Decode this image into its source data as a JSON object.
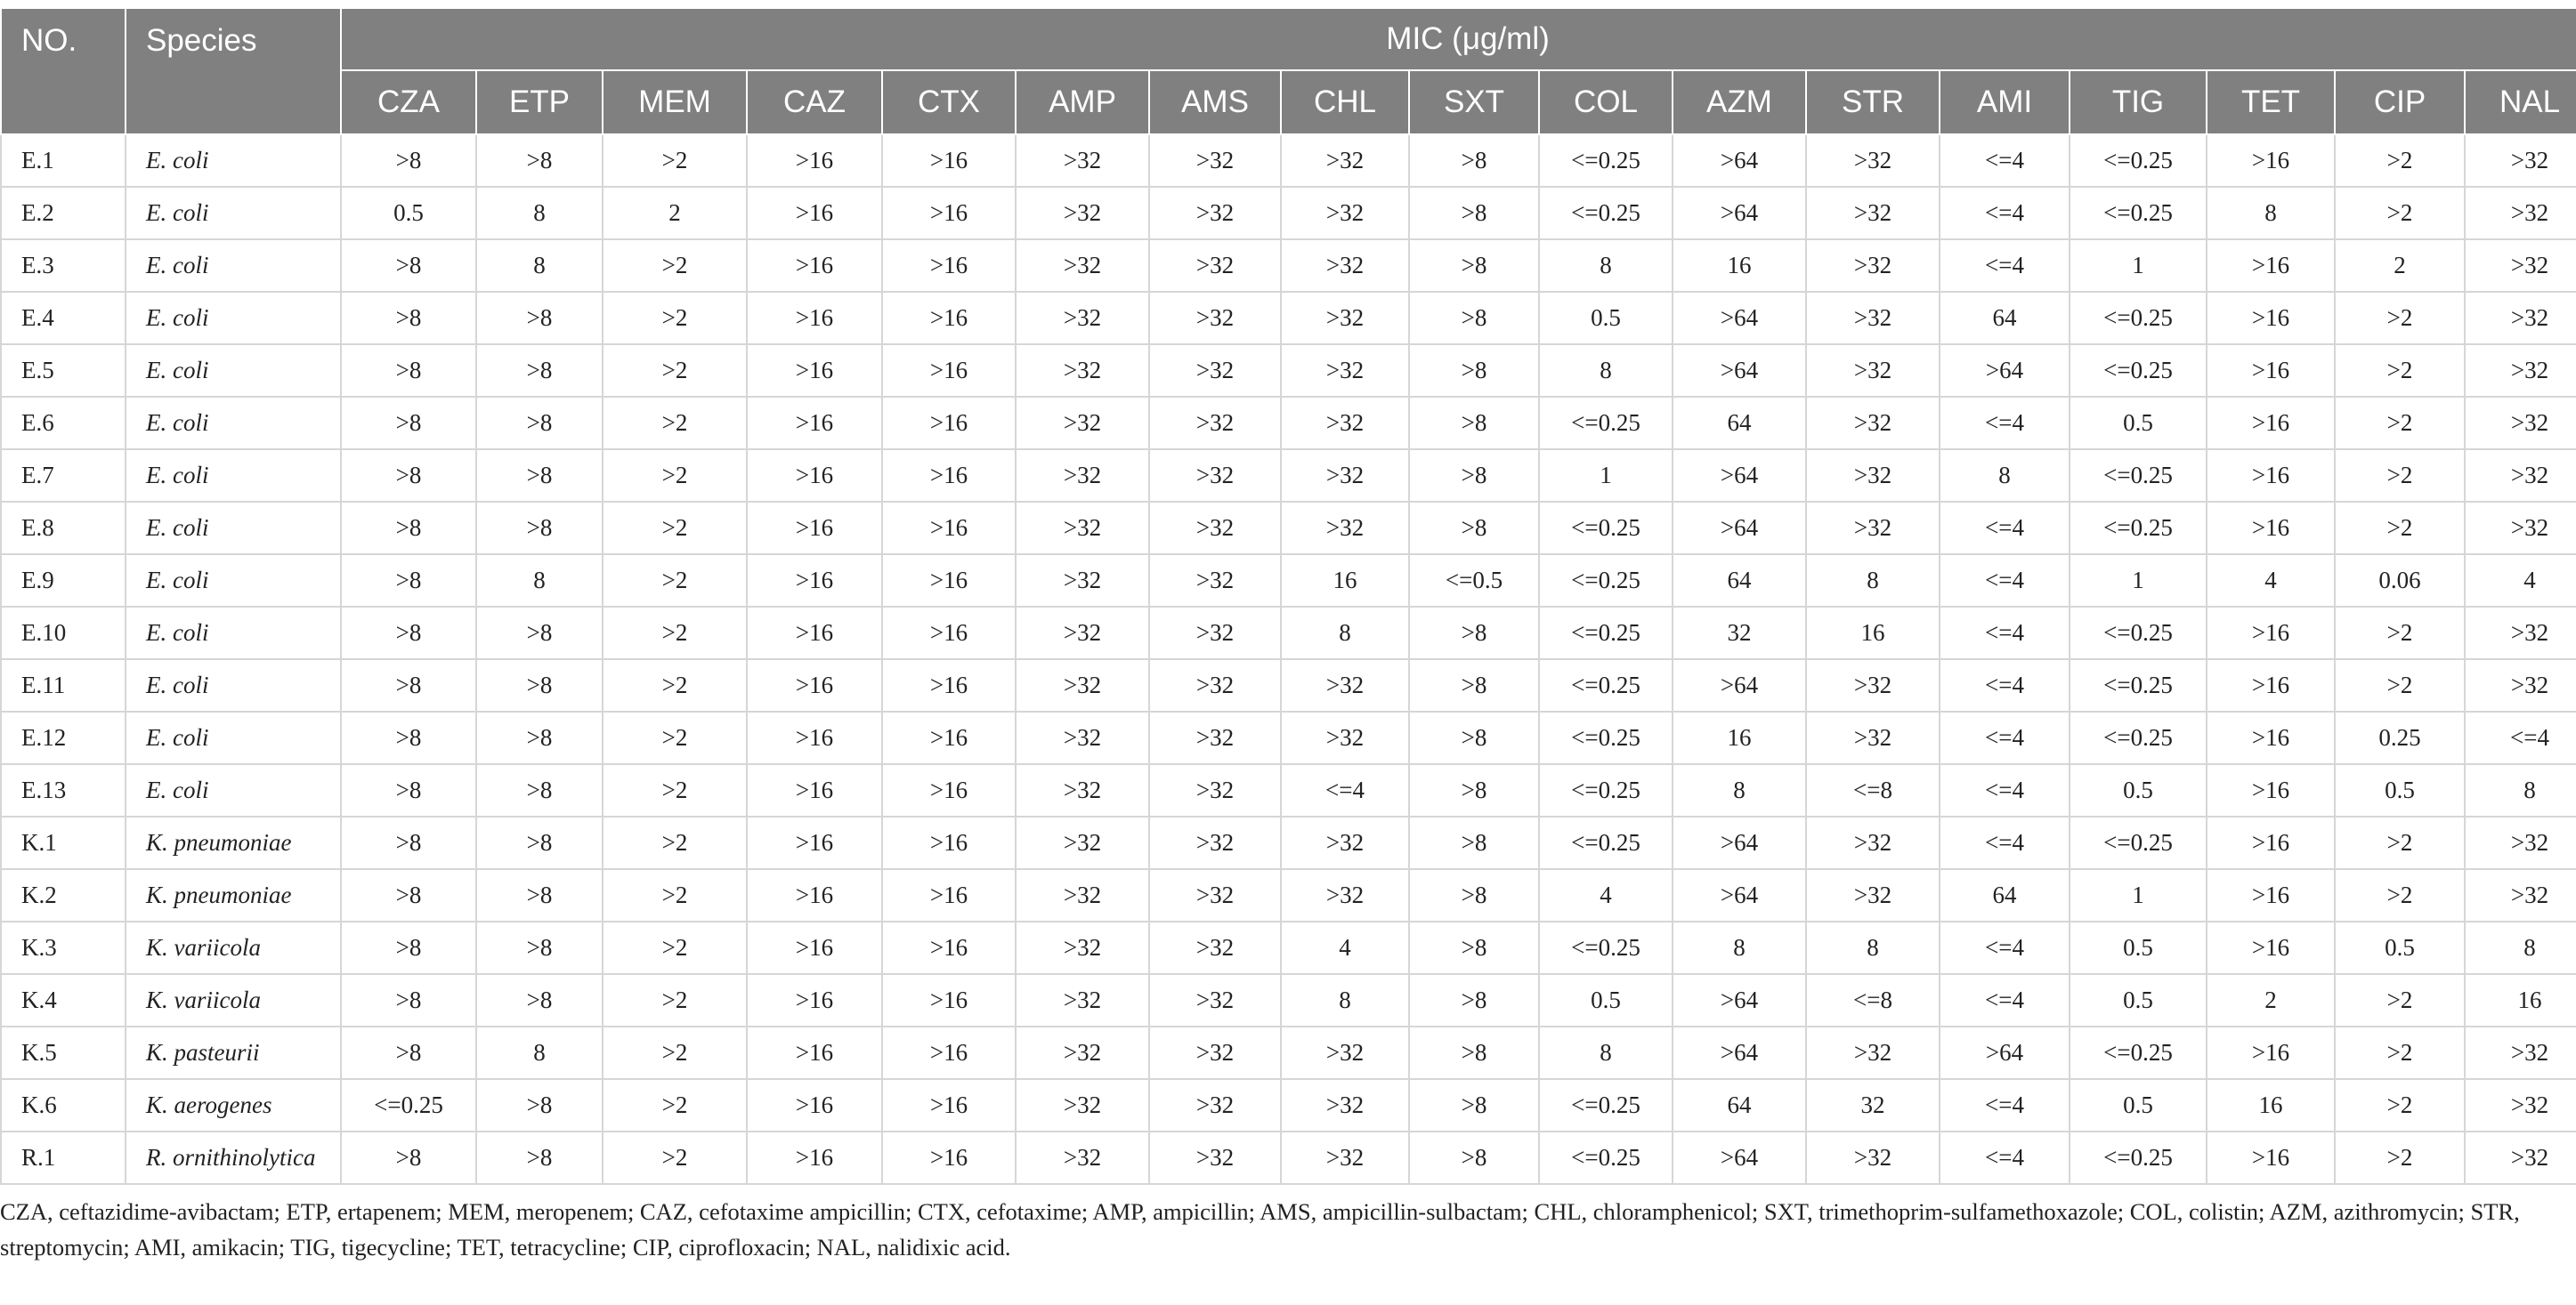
{
  "table": {
    "header": {
      "no": "NO.",
      "species": "Species",
      "group": "MIC (μg/ml)",
      "antibiotics": [
        "CZA",
        "ETP",
        "MEM",
        "CAZ",
        "CTX",
        "AMP",
        "AMS",
        "CHL",
        "SXT",
        "COL",
        "AZM",
        "STR",
        "AMI",
        "TIG",
        "TET",
        "CIP",
        "NAL"
      ]
    },
    "rows": [
      {
        "no": "E.1",
        "species": "E. coli",
        "values": [
          ">8",
          ">8",
          ">2",
          ">16",
          ">16",
          ">32",
          ">32",
          ">32",
          ">8",
          "<=0.25",
          ">64",
          ">32",
          "<=4",
          "<=0.25",
          ">16",
          ">2",
          ">32"
        ]
      },
      {
        "no": "E.2",
        "species": "E. coli",
        "values": [
          "0.5",
          "8",
          "2",
          ">16",
          ">16",
          ">32",
          ">32",
          ">32",
          ">8",
          "<=0.25",
          ">64",
          ">32",
          "<=4",
          "<=0.25",
          "8",
          ">2",
          ">32"
        ]
      },
      {
        "no": "E.3",
        "species": "E. coli",
        "values": [
          ">8",
          "8",
          ">2",
          ">16",
          ">16",
          ">32",
          ">32",
          ">32",
          ">8",
          "8",
          "16",
          ">32",
          "<=4",
          "1",
          ">16",
          "2",
          ">32"
        ]
      },
      {
        "no": "E.4",
        "species": "E. coli",
        "values": [
          ">8",
          ">8",
          ">2",
          ">16",
          ">16",
          ">32",
          ">32",
          ">32",
          ">8",
          "0.5",
          ">64",
          ">32",
          "64",
          "<=0.25",
          ">16",
          ">2",
          ">32"
        ]
      },
      {
        "no": "E.5",
        "species": "E. coli",
        "values": [
          ">8",
          ">8",
          ">2",
          ">16",
          ">16",
          ">32",
          ">32",
          ">32",
          ">8",
          "8",
          ">64",
          ">32",
          ">64",
          "<=0.25",
          ">16",
          ">2",
          ">32"
        ]
      },
      {
        "no": "E.6",
        "species": "E. coli",
        "values": [
          ">8",
          ">8",
          ">2",
          ">16",
          ">16",
          ">32",
          ">32",
          ">32",
          ">8",
          "<=0.25",
          "64",
          ">32",
          "<=4",
          "0.5",
          ">16",
          ">2",
          ">32"
        ]
      },
      {
        "no": "E.7",
        "species": "E. coli",
        "values": [
          ">8",
          ">8",
          ">2",
          ">16",
          ">16",
          ">32",
          ">32",
          ">32",
          ">8",
          "1",
          ">64",
          ">32",
          "8",
          "<=0.25",
          ">16",
          ">2",
          ">32"
        ]
      },
      {
        "no": "E.8",
        "species": "E. coli",
        "values": [
          ">8",
          ">8",
          ">2",
          ">16",
          ">16",
          ">32",
          ">32",
          ">32",
          ">8",
          "<=0.25",
          ">64",
          ">32",
          "<=4",
          "<=0.25",
          ">16",
          ">2",
          ">32"
        ]
      },
      {
        "no": "E.9",
        "species": "E. coli",
        "values": [
          ">8",
          "8",
          ">2",
          ">16",
          ">16",
          ">32",
          ">32",
          "16",
          "<=0.5",
          "<=0.25",
          "64",
          "8",
          "<=4",
          "1",
          "4",
          "0.06",
          "4"
        ]
      },
      {
        "no": "E.10",
        "species": "E. coli",
        "values": [
          ">8",
          ">8",
          ">2",
          ">16",
          ">16",
          ">32",
          ">32",
          "8",
          ">8",
          "<=0.25",
          "32",
          "16",
          "<=4",
          "<=0.25",
          ">16",
          ">2",
          ">32"
        ]
      },
      {
        "no": "E.11",
        "species": "E. coli",
        "values": [
          ">8",
          ">8",
          ">2",
          ">16",
          ">16",
          ">32",
          ">32",
          ">32",
          ">8",
          "<=0.25",
          ">64",
          ">32",
          "<=4",
          "<=0.25",
          ">16",
          ">2",
          ">32"
        ]
      },
      {
        "no": "E.12",
        "species": "E. coli",
        "values": [
          ">8",
          ">8",
          ">2",
          ">16",
          ">16",
          ">32",
          ">32",
          ">32",
          ">8",
          "<=0.25",
          "16",
          ">32",
          "<=4",
          "<=0.25",
          ">16",
          "0.25",
          "<=4"
        ]
      },
      {
        "no": "E.13",
        "species": "E. coli",
        "values": [
          ">8",
          ">8",
          ">2",
          ">16",
          ">16",
          ">32",
          ">32",
          "<=4",
          ">8",
          "<=0.25",
          "8",
          "<=8",
          "<=4",
          "0.5",
          ">16",
          "0.5",
          "8"
        ]
      },
      {
        "no": "K.1",
        "species": "K. pneumoniae",
        "values": [
          ">8",
          ">8",
          ">2",
          ">16",
          ">16",
          ">32",
          ">32",
          ">32",
          ">8",
          "<=0.25",
          ">64",
          ">32",
          "<=4",
          "<=0.25",
          ">16",
          ">2",
          ">32"
        ]
      },
      {
        "no": "K.2",
        "species": "K. pneumoniae",
        "values": [
          ">8",
          ">8",
          ">2",
          ">16",
          ">16",
          ">32",
          ">32",
          ">32",
          ">8",
          "4",
          ">64",
          ">32",
          "64",
          "1",
          ">16",
          ">2",
          ">32"
        ]
      },
      {
        "no": "K.3",
        "species": "K. variicola",
        "values": [
          ">8",
          ">8",
          ">2",
          ">16",
          ">16",
          ">32",
          ">32",
          "4",
          ">8",
          "<=0.25",
          "8",
          "8",
          "<=4",
          "0.5",
          ">16",
          "0.5",
          "8"
        ]
      },
      {
        "no": "K.4",
        "species": "K. variicola",
        "values": [
          ">8",
          ">8",
          ">2",
          ">16",
          ">16",
          ">32",
          ">32",
          "8",
          ">8",
          "0.5",
          ">64",
          "<=8",
          "<=4",
          "0.5",
          "2",
          ">2",
          "16"
        ]
      },
      {
        "no": "K.5",
        "species": "K. pasteurii",
        "values": [
          ">8",
          "8",
          ">2",
          ">16",
          ">16",
          ">32",
          ">32",
          ">32",
          ">8",
          "8",
          ">64",
          ">32",
          ">64",
          "<=0.25",
          ">16",
          ">2",
          ">32"
        ]
      },
      {
        "no": "K.6",
        "species": "K. aerogenes",
        "values": [
          "<=0.25",
          ">8",
          ">2",
          ">16",
          ">16",
          ">32",
          ">32",
          ">32",
          ">8",
          "<=0.25",
          "64",
          "32",
          "<=4",
          "0.5",
          "16",
          ">2",
          ">32"
        ]
      },
      {
        "no": "R.1",
        "species": "R. ornithinolytica",
        "values": [
          ">8",
          ">8",
          ">2",
          ">16",
          ">16",
          ">32",
          ">32",
          ">32",
          ">8",
          "<=0.25",
          ">64",
          ">32",
          "<=4",
          "<=0.25",
          ">16",
          ">2",
          ">32"
        ]
      }
    ]
  },
  "footnote": "CZA, ceftazidime-avibactam; ETP, ertapenem; MEM, meropenem; CAZ, cefotaxime ampicillin; CTX, cefotaxime; AMP, ampicillin; AMS, ampicillin-sulbactam; CHL, chloramphenicol; SXT, trimethoprim-sulfamethoxazole; COL, colistin; AZM, azithromycin; STR, streptomycin; AMI, amikacin; TIG, tigecycline; TET, tetracycline; CIP, ciprofloxacin; NAL, nalidixic acid."
}
